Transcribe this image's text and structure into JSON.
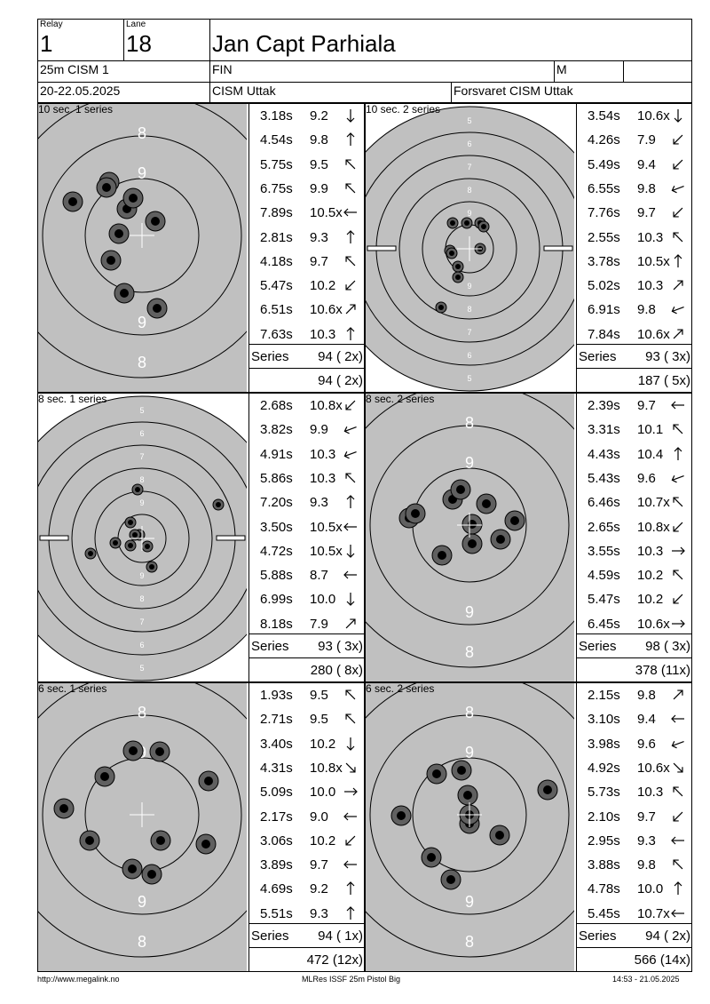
{
  "header": {
    "relay_label": "Relay",
    "relay": "1",
    "lane_label": "Lane",
    "lane": "18",
    "name": "Jan Capt Parhiala",
    "event": "25m CISM 1",
    "nation": "FIN",
    "gender": "M",
    "category": "",
    "dates": "20-22.05.2025",
    "club": "CISM Uttak",
    "org": "Forsvaret CISM Uttak"
  },
  "panels": [
    {
      "title": "10 sec. 1 series",
      "zoom": "rapid",
      "shots": [
        {
          "t": "3.18s",
          "v": "9.2",
          "d": "down"
        },
        {
          "t": "4.54s",
          "v": "9.8",
          "d": "up"
        },
        {
          "t": "5.75s",
          "v": "9.5",
          "d": "up-left"
        },
        {
          "t": "6.75s",
          "v": "9.9",
          "d": "up-left"
        },
        {
          "t": "7.89s",
          "v": "10.5x",
          "d": "left"
        },
        {
          "t": "2.81s",
          "v": "9.3",
          "d": "up"
        },
        {
          "t": "4.18s",
          "v": "9.7",
          "d": "up-left"
        },
        {
          "t": "5.47s",
          "v": "10.2",
          "d": "down-left"
        },
        {
          "t": "6.51s",
          "v": "10.6x",
          "d": "up-right"
        },
        {
          "t": "7.63s",
          "v": "10.3",
          "d": "up"
        }
      ],
      "series_label": "Series",
      "series": "94 ( 2x)",
      "total": "94 ( 2x)",
      "hits": [
        [
          -20,
          65
        ],
        [
          -17,
          -30
        ],
        [
          -37,
          -60
        ],
        [
          -40,
          -54
        ],
        [
          -10,
          -42
        ],
        [
          -78,
          -38
        ],
        [
          -26,
          -2
        ],
        [
          15,
          -16
        ],
        [
          -35,
          28
        ],
        [
          17,
          82
        ]
      ],
      "ring_labels": [
        "8",
        "9",
        "9",
        "8"
      ]
    },
    {
      "title": "10 sec. 2 series",
      "zoom": "precision",
      "shots": [
        {
          "t": "3.54s",
          "v": "10.6x",
          "d": "down"
        },
        {
          "t": "4.26s",
          "v": "7.9",
          "d": "down-left"
        },
        {
          "t": "5.49s",
          "v": "9.4",
          "d": "down-left"
        },
        {
          "t": "6.55s",
          "v": "9.8",
          "d": "left-down"
        },
        {
          "t": "7.76s",
          "v": "9.7",
          "d": "down-left"
        },
        {
          "t": "2.55s",
          "v": "10.3",
          "d": "up-left"
        },
        {
          "t": "3.78s",
          "v": "10.5x",
          "d": "up"
        },
        {
          "t": "5.02s",
          "v": "10.3",
          "d": "up-right"
        },
        {
          "t": "6.91s",
          "v": "9.8",
          "d": "left-down"
        },
        {
          "t": "7.84s",
          "v": "10.6x",
          "d": "up-right"
        }
      ],
      "series_label": "Series",
      "series": "93 ( 3x)",
      "total": "187 ( 5x)",
      "hits": [
        [
          -3,
          -29
        ],
        [
          -32,
          66
        ],
        [
          -22,
          2
        ],
        [
          -13,
          20
        ],
        [
          -13,
          32
        ],
        [
          -20,
          5
        ],
        [
          12,
          -29
        ],
        [
          16,
          -25
        ],
        [
          -19,
          -29
        ],
        [
          12,
          0
        ]
      ],
      "ring_labels": [
        "5",
        "6",
        "7",
        "8",
        "9",
        "9",
        "8",
        "7",
        "6",
        "5"
      ]
    },
    {
      "title": "8 sec. 1 series",
      "zoom": "precision",
      "shots": [
        {
          "t": "2.68s",
          "v": "10.8x",
          "d": "down-left"
        },
        {
          "t": "3.82s",
          "v": "9.9",
          "d": "left-down"
        },
        {
          "t": "4.91s",
          "v": "10.3",
          "d": "left-down"
        },
        {
          "t": "5.86s",
          "v": "10.3",
          "d": "up-left"
        },
        {
          "t": "7.20s",
          "v": "9.3",
          "d": "up"
        },
        {
          "t": "3.50s",
          "v": "10.5x",
          "d": "left"
        },
        {
          "t": "4.72s",
          "v": "10.5x",
          "d": "down"
        },
        {
          "t": "5.88s",
          "v": "8.7",
          "d": "left"
        },
        {
          "t": "6.99s",
          "v": "10.0",
          "d": "down"
        },
        {
          "t": "8.18s",
          "v": "7.9",
          "d": "up-right"
        }
      ],
      "series_label": "Series",
      "series": "93 ( 3x)",
      "total": "280 ( 8x)",
      "hits": [
        [
          -3,
          -4
        ],
        [
          -8,
          -4
        ],
        [
          -13,
          8
        ],
        [
          6,
          9
        ],
        [
          -13,
          -18
        ],
        [
          -30,
          5
        ],
        [
          -58,
          17
        ],
        [
          -5,
          -55
        ],
        [
          11,
          32
        ],
        [
          86,
          -38
        ]
      ],
      "ring_labels": [
        "5",
        "6",
        "7",
        "8",
        "9",
        "9",
        "8",
        "7",
        "6",
        "5"
      ]
    },
    {
      "title": "8 sec. 2 series",
      "zoom": "rapid",
      "shots": [
        {
          "t": "2.39s",
          "v": "9.7",
          "d": "left"
        },
        {
          "t": "3.31s",
          "v": "10.1",
          "d": "up-left"
        },
        {
          "t": "4.43s",
          "v": "10.4",
          "d": "up"
        },
        {
          "t": "5.43s",
          "v": "9.6",
          "d": "left-down"
        },
        {
          "t": "6.46s",
          "v": "10.7x",
          "d": "up-left"
        },
        {
          "t": "2.65s",
          "v": "10.8x",
          "d": "down-left"
        },
        {
          "t": "3.55s",
          "v": "10.3",
          "d": "right"
        },
        {
          "t": "4.59s",
          "v": "10.2",
          "d": "up-left"
        },
        {
          "t": "5.47s",
          "v": "10.2",
          "d": "down-left"
        },
        {
          "t": "6.45s",
          "v": "10.6x",
          "d": "right"
        }
      ],
      "series_label": "Series",
      "series": "98 ( 3x)",
      "total": "378 (11x)",
      "hits": [
        [
          -68,
          -8
        ],
        [
          -61,
          -13
        ],
        [
          -19,
          -29
        ],
        [
          -10,
          -40
        ],
        [
          3,
          21
        ],
        [
          3,
          -1
        ],
        [
          19,
          -24
        ],
        [
          35,
          16
        ],
        [
          51,
          -5
        ],
        [
          -31,
          34
        ]
      ],
      "ring_labels": [
        "8",
        "9",
        "9",
        "8"
      ]
    },
    {
      "title": "6 sec. 1 series",
      "zoom": "rapid",
      "shots": [
        {
          "t": "1.93s",
          "v": "9.5",
          "d": "up-left"
        },
        {
          "t": "2.71s",
          "v": "9.5",
          "d": "up-left"
        },
        {
          "t": "3.40s",
          "v": "10.2",
          "d": "down"
        },
        {
          "t": "4.31s",
          "v": "10.8x",
          "d": "down-right"
        },
        {
          "t": "5.09s",
          "v": "10.0",
          "d": "right"
        },
        {
          "t": "2.17s",
          "v": "9.0",
          "d": "left"
        },
        {
          "t": "3.06s",
          "v": "10.2",
          "d": "down-left"
        },
        {
          "t": "3.89s",
          "v": "9.7",
          "d": "left"
        },
        {
          "t": "4.69s",
          "v": "9.2",
          "d": "up"
        },
        {
          "t": "5.51s",
          "v": "9.3",
          "d": "up"
        }
      ],
      "series_label": "Series",
      "series": "94 ( 1x)",
      "total": "472 (12x)",
      "hits": [
        [
          -10,
          -72
        ],
        [
          20,
          -71
        ],
        [
          -42,
          -43
        ],
        [
          75,
          -38
        ],
        [
          -88,
          -7
        ],
        [
          -59,
          29
        ],
        [
          21,
          29
        ],
        [
          72,
          33
        ],
        [
          -11,
          61
        ],
        [
          11,
          67
        ]
      ],
      "ring_labels": [
        "8",
        "9",
        "9",
        "8"
      ]
    },
    {
      "title": "6 sec. 2 series",
      "zoom": "rapid",
      "shots": [
        {
          "t": "2.15s",
          "v": "9.8",
          "d": "up-right"
        },
        {
          "t": "3.10s",
          "v": "9.4",
          "d": "left"
        },
        {
          "t": "3.98s",
          "v": "9.6",
          "d": "left-down"
        },
        {
          "t": "4.92s",
          "v": "10.6x",
          "d": "down-right"
        },
        {
          "t": "5.73s",
          "v": "10.3",
          "d": "up-left"
        },
        {
          "t": "2.10s",
          "v": "9.7",
          "d": "down-left"
        },
        {
          "t": "2.95s",
          "v": "9.3",
          "d": "left"
        },
        {
          "t": "3.88s",
          "v": "9.8",
          "d": "up-left"
        },
        {
          "t": "4.78s",
          "v": "10.0",
          "d": "up"
        },
        {
          "t": "5.45s",
          "v": "10.7x",
          "d": "left"
        }
      ],
      "series_label": "Series",
      "series": "94 ( 2x)",
      "total": "566 (14x)",
      "hits": [
        [
          -37,
          -46
        ],
        [
          -9,
          -50
        ],
        [
          -2,
          -22
        ],
        [
          88,
          -28
        ],
        [
          -77,
          1
        ],
        [
          0,
          10
        ],
        [
          34,
          23
        ],
        [
          -43,
          48
        ],
        [
          -21,
          73
        ],
        [
          0,
          0
        ]
      ],
      "ring_labels": [
        "8",
        "9",
        "9",
        "8"
      ]
    }
  ],
  "footer": {
    "left": "http://www.megalink.no",
    "center": "MLRes ISSF 25m Pistol Big",
    "right": "14:53 - 21.05.2025"
  },
  "colors": {
    "target_grey": "#c0c0c0",
    "hit_dark": "#000000",
    "hit_ring": "#606060"
  }
}
